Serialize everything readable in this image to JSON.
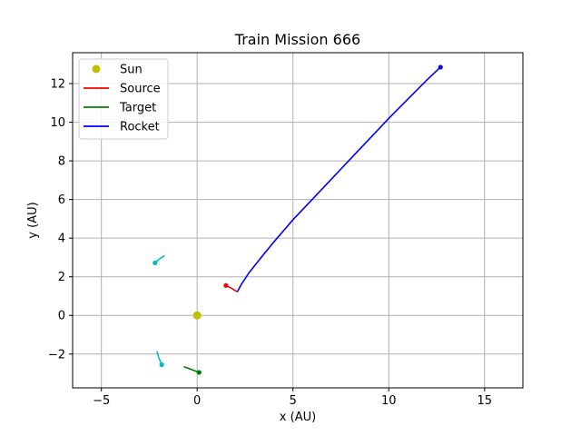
{
  "chart_data": {
    "type": "line",
    "title": "Train Mission 666",
    "xlabel": "x (AU)",
    "ylabel": "y (AU)",
    "xlim": [
      -6.5,
      17.0
    ],
    "ylim": [
      -3.75,
      13.6
    ],
    "xticks": [
      -5,
      0,
      5,
      10,
      15
    ],
    "yticks": [
      -2,
      0,
      2,
      4,
      6,
      8,
      10,
      12
    ],
    "grid": true,
    "legend_position": "top-left",
    "legend": [
      {
        "label": "Sun",
        "kind": "marker",
        "color": "#bfbf00"
      },
      {
        "label": "Source",
        "kind": "line",
        "color": "#ff0000"
      },
      {
        "label": "Target",
        "kind": "line",
        "color": "#008000"
      },
      {
        "label": "Rocket",
        "kind": "line",
        "color": "#0000ff"
      }
    ],
    "series": [
      {
        "name": "Sun",
        "kind": "marker",
        "color": "#bfbf00",
        "points": [
          [
            0.0,
            0.0
          ]
        ]
      },
      {
        "name": "Source",
        "kind": "line",
        "color": "#ff0000",
        "end_marker": true,
        "points": [
          [
            2.1,
            1.22
          ],
          [
            1.8,
            1.4
          ],
          [
            1.5,
            1.55
          ]
        ]
      },
      {
        "name": "Target",
        "kind": "line",
        "color": "#008000",
        "end_marker": true,
        "points": [
          [
            -0.7,
            -2.65
          ],
          [
            -0.3,
            -2.8
          ],
          [
            0.1,
            -2.95
          ]
        ]
      },
      {
        "name": "Rocket",
        "kind": "line",
        "color": "#0000ff",
        "end_marker": true,
        "points": [
          [
            2.1,
            1.22
          ],
          [
            2.3,
            1.6
          ],
          [
            2.7,
            2.2
          ],
          [
            3.3,
            2.95
          ],
          [
            4.0,
            3.8
          ],
          [
            5.0,
            4.95
          ],
          [
            6.0,
            6.0
          ],
          [
            7.0,
            7.05
          ],
          [
            8.0,
            8.1
          ],
          [
            9.0,
            9.15
          ],
          [
            10.0,
            10.2
          ],
          [
            11.0,
            11.2
          ],
          [
            12.0,
            12.2
          ],
          [
            12.7,
            12.85
          ]
        ]
      },
      {
        "name": "",
        "kind": "line",
        "color": "#00bfbf",
        "end_marker": true,
        "points": [
          [
            -1.7,
            3.1
          ],
          [
            -2.0,
            2.9
          ],
          [
            -2.2,
            2.72
          ]
        ]
      },
      {
        "name": "",
        "kind": "line",
        "color": "#00bfbf",
        "end_marker": true,
        "points": [
          [
            -2.1,
            -1.85
          ],
          [
            -2.0,
            -2.2
          ],
          [
            -1.85,
            -2.55
          ]
        ]
      }
    ]
  }
}
